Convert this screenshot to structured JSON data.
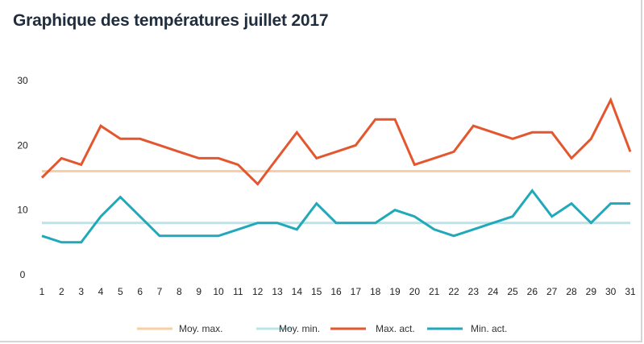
{
  "chart_data": {
    "type": "line",
    "title": "Graphique des températures juillet 2017",
    "xlabel": "",
    "ylabel": "",
    "x": [
      1,
      2,
      3,
      4,
      5,
      6,
      7,
      8,
      9,
      10,
      11,
      12,
      13,
      14,
      15,
      16,
      17,
      18,
      19,
      20,
      21,
      22,
      23,
      24,
      25,
      26,
      27,
      28,
      29,
      30,
      31
    ],
    "ylim": [
      0,
      30
    ],
    "yticks": [
      0,
      10,
      20,
      30
    ],
    "grid": false,
    "legend_position": "bottom",
    "series": [
      {
        "name": "Moy. max.",
        "color": "#f9cda5",
        "values": [
          16,
          16,
          16,
          16,
          16,
          16,
          16,
          16,
          16,
          16,
          16,
          16,
          16,
          16,
          16,
          16,
          16,
          16,
          16,
          16,
          16,
          16,
          16,
          16,
          16,
          16,
          16,
          16,
          16,
          16,
          16
        ]
      },
      {
        "name": "Moy. min.",
        "color": "#b9e4ea",
        "values": [
          8,
          8,
          8,
          8,
          8,
          8,
          8,
          8,
          8,
          8,
          8,
          8,
          8,
          8,
          8,
          8,
          8,
          8,
          8,
          8,
          8,
          8,
          8,
          8,
          8,
          8,
          8,
          8,
          8,
          8,
          8
        ]
      },
      {
        "name": "Max. act.",
        "color": "#e4572e",
        "values": [
          15,
          18,
          17,
          23,
          21,
          21,
          20,
          19,
          18,
          18,
          17,
          14,
          18,
          22,
          18,
          19,
          20,
          24,
          24,
          17,
          18,
          19,
          23,
          22,
          21,
          22,
          22,
          18,
          21,
          27,
          19
        ]
      },
      {
        "name": "Min. act.",
        "color": "#21a9ba",
        "values": [
          6,
          5,
          5,
          9,
          12,
          9,
          6,
          6,
          6,
          6,
          7,
          8,
          8,
          7,
          11,
          8,
          8,
          8,
          10,
          9,
          7,
          6,
          7,
          8,
          9,
          13,
          9,
          11,
          8,
          11,
          11
        ]
      }
    ]
  }
}
